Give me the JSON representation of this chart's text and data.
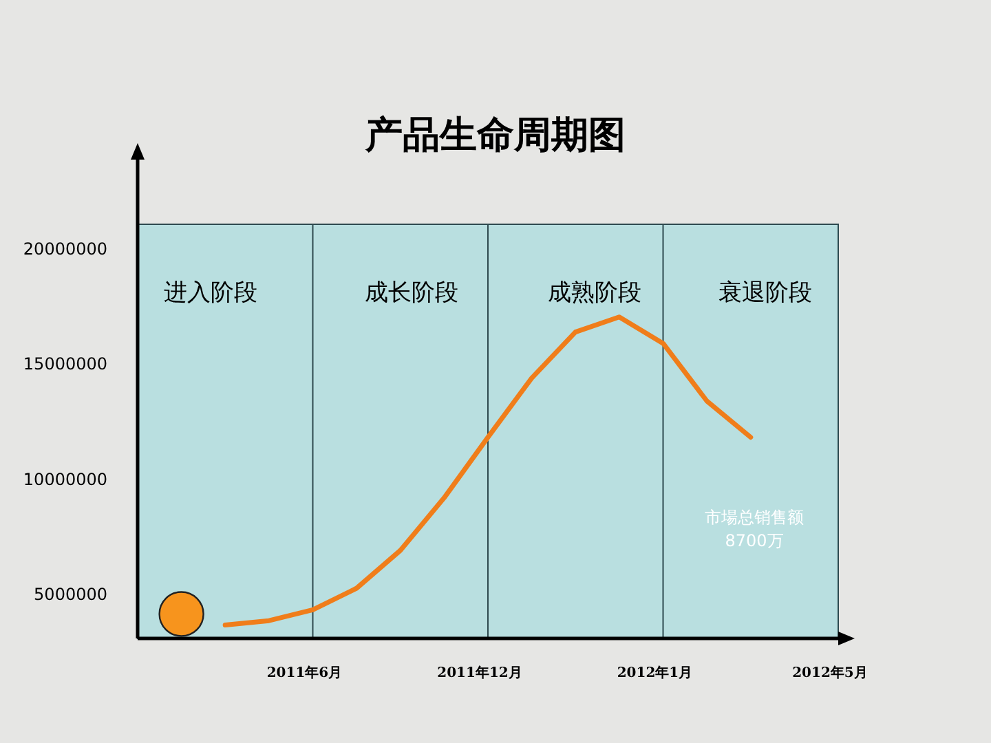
{
  "chart_data": {
    "type": "line",
    "title": "产品生命周期图",
    "categories": [
      null,
      null,
      null,
      null,
      "2011年6月",
      null,
      null,
      null,
      "2011年12月",
      null,
      null,
      null,
      "2012年1月",
      null,
      null,
      null,
      "2012年5月"
    ],
    "ylim": [
      3100000,
      24000000
    ],
    "yticks": [
      5000000,
      10000000,
      15000000,
      20000000
    ],
    "ref_lines": [
      {
        "axis": "x",
        "value": "2011年6月",
        "color": "#2e4a4f"
      },
      {
        "axis": "x",
        "value": "2011年12月",
        "color": "#2e4a4f"
      },
      {
        "axis": "x",
        "value": "2012年1月",
        "color": "#2e4a4f"
      }
    ],
    "series": [
      {
        "type": "line",
        "color": "#f07d1a",
        "values": [
          null,
          null,
          3680000,
          3870000,
          4340000,
          5280000,
          6920000,
          9200000,
          11830000,
          14400000,
          16400000,
          17050000,
          15900000,
          13400000,
          11830000,
          null,
          null
        ]
      },
      {
        "type": "scatter",
        "marker": "circle",
        "color": "#f7941d",
        "values": [
          null,
          4160000,
          null,
          null,
          null,
          null,
          null,
          null,
          null,
          null,
          null,
          null,
          null,
          null,
          null,
          null,
          null
        ]
      }
    ],
    "annotations": [
      "进入阶段",
      "成长阶段",
      "成熟阶段",
      "衰退阶段",
      "市場总销售额",
      "8700万"
    ]
  }
}
